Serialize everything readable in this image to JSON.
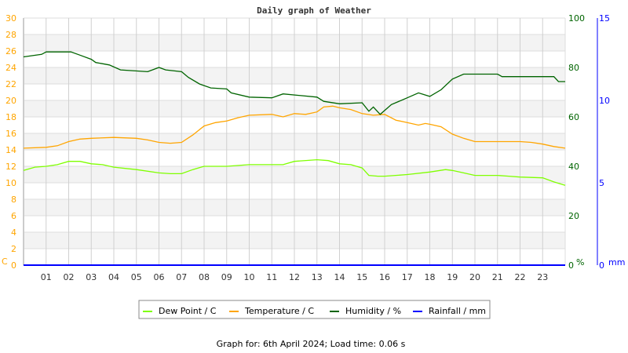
{
  "chart_data": {
    "type": "line",
    "title": "Daily graph of Weather",
    "x_ticks": [
      "01",
      "02",
      "03",
      "04",
      "05",
      "06",
      "07",
      "08",
      "09",
      "10",
      "11",
      "12",
      "13",
      "14",
      "15",
      "16",
      "17",
      "18",
      "19",
      "20",
      "21",
      "22",
      "23"
    ],
    "xlim": [
      0,
      24
    ],
    "left_axis": {
      "unit": "C",
      "ylim": [
        0,
        30
      ],
      "ticks": [
        "0",
        "2",
        "4",
        "6",
        "8",
        "10",
        "12",
        "14",
        "16",
        "18",
        "20",
        "22",
        "24",
        "26",
        "28",
        "30"
      ],
      "color": "#ffa500"
    },
    "humidity_axis": {
      "unit": "%",
      "ylim": [
        0,
        100
      ],
      "ticks": [
        "0",
        "20",
        "40",
        "60",
        "80",
        "100"
      ],
      "color": "#006400"
    },
    "rain_axis": {
      "unit": "mm",
      "ylim": [
        0,
        15
      ],
      "ticks": [
        "0",
        "5",
        "10",
        "15"
      ],
      "color": "#0000ff"
    },
    "grid": true,
    "legend_position": "bottom",
    "series": [
      {
        "name": "Dew Point / C",
        "axis": "left",
        "color": "#7fff00",
        "x": [
          0,
          0.5,
          1,
          1.5,
          2,
          2.5,
          3,
          3.5,
          4,
          5,
          6,
          6.5,
          7,
          7.5,
          8,
          9,
          10,
          11,
          11.5,
          12,
          13,
          13.5,
          14,
          14.5,
          15,
          15.3,
          15.7,
          16,
          17,
          18,
          18.7,
          19,
          19.5,
          20,
          21,
          21.5,
          22,
          23,
          23.5,
          24
        ],
        "y": [
          11.5,
          11.9,
          12.0,
          12.2,
          12.6,
          12.6,
          12.3,
          12.2,
          11.9,
          11.6,
          11.2,
          11.1,
          11.1,
          11.6,
          12.0,
          12.0,
          12.2,
          12.2,
          12.2,
          12.6,
          12.8,
          12.7,
          12.3,
          12.2,
          11.8,
          10.9,
          10.8,
          10.8,
          11.0,
          11.3,
          11.6,
          11.5,
          11.2,
          10.9,
          10.9,
          10.8,
          10.7,
          10.6,
          10.1,
          9.7
        ]
      },
      {
        "name": "Temperature / C",
        "axis": "left",
        "color": "#ffa500",
        "x": [
          0,
          1,
          1.5,
          2,
          2.5,
          3,
          4,
          5,
          5.5,
          6,
          6.5,
          7,
          7.5,
          8,
          8.5,
          9,
          9.5,
          10,
          11,
          11.5,
          12,
          12.5,
          13,
          13.3,
          13.7,
          14,
          14.5,
          15,
          15.5,
          16,
          16.5,
          17,
          17.5,
          17.8,
          18,
          18.5,
          19,
          19.5,
          20,
          21,
          22,
          22.5,
          23,
          23.5,
          24
        ],
        "y": [
          14.2,
          14.3,
          14.5,
          15.0,
          15.3,
          15.4,
          15.5,
          15.4,
          15.2,
          14.9,
          14.8,
          14.9,
          15.8,
          16.9,
          17.3,
          17.5,
          17.9,
          18.2,
          18.3,
          18.0,
          18.4,
          18.3,
          18.6,
          19.2,
          19.3,
          19.1,
          18.9,
          18.4,
          18.2,
          18.3,
          17.6,
          17.3,
          17.0,
          17.2,
          17.1,
          16.8,
          15.9,
          15.4,
          15.0,
          15.0,
          15.0,
          14.9,
          14.7,
          14.4,
          14.2
        ]
      },
      {
        "name": "Humidity / %",
        "axis": "humidity",
        "color": "#006400",
        "x": [
          0,
          0.8,
          1,
          2.1,
          2.5,
          3,
          3.2,
          3.8,
          4.3,
          5.5,
          6,
          6.3,
          7,
          7.3,
          7.8,
          8.3,
          9,
          9.2,
          10,
          11,
          11.5,
          13,
          13.3,
          14,
          15,
          15.3,
          15.5,
          15.8,
          16.3,
          17,
          17.5,
          18,
          18.5,
          19,
          19.5,
          21,
          21.2,
          23.5,
          23.7,
          24
        ],
        "y": [
          84.3,
          85.3,
          86.3,
          86.3,
          85,
          83.3,
          82,
          81,
          79,
          78.3,
          80,
          79,
          78.3,
          76,
          73.3,
          71.7,
          71.3,
          69.7,
          68,
          67.7,
          69.3,
          68,
          66.3,
          65.3,
          65.7,
          62.3,
          64,
          61,
          65,
          67.7,
          69.7,
          68.3,
          71,
          75.3,
          77.3,
          77.3,
          76.3,
          76.3,
          74.3,
          74.3
        ]
      },
      {
        "name": "Rainfall / mm",
        "axis": "rain",
        "color": "#0000ff",
        "x": [
          0,
          24
        ],
        "y": [
          0,
          0
        ]
      }
    ]
  },
  "footer": "Graph for: 6th April 2024; Load time: 0.06 s"
}
